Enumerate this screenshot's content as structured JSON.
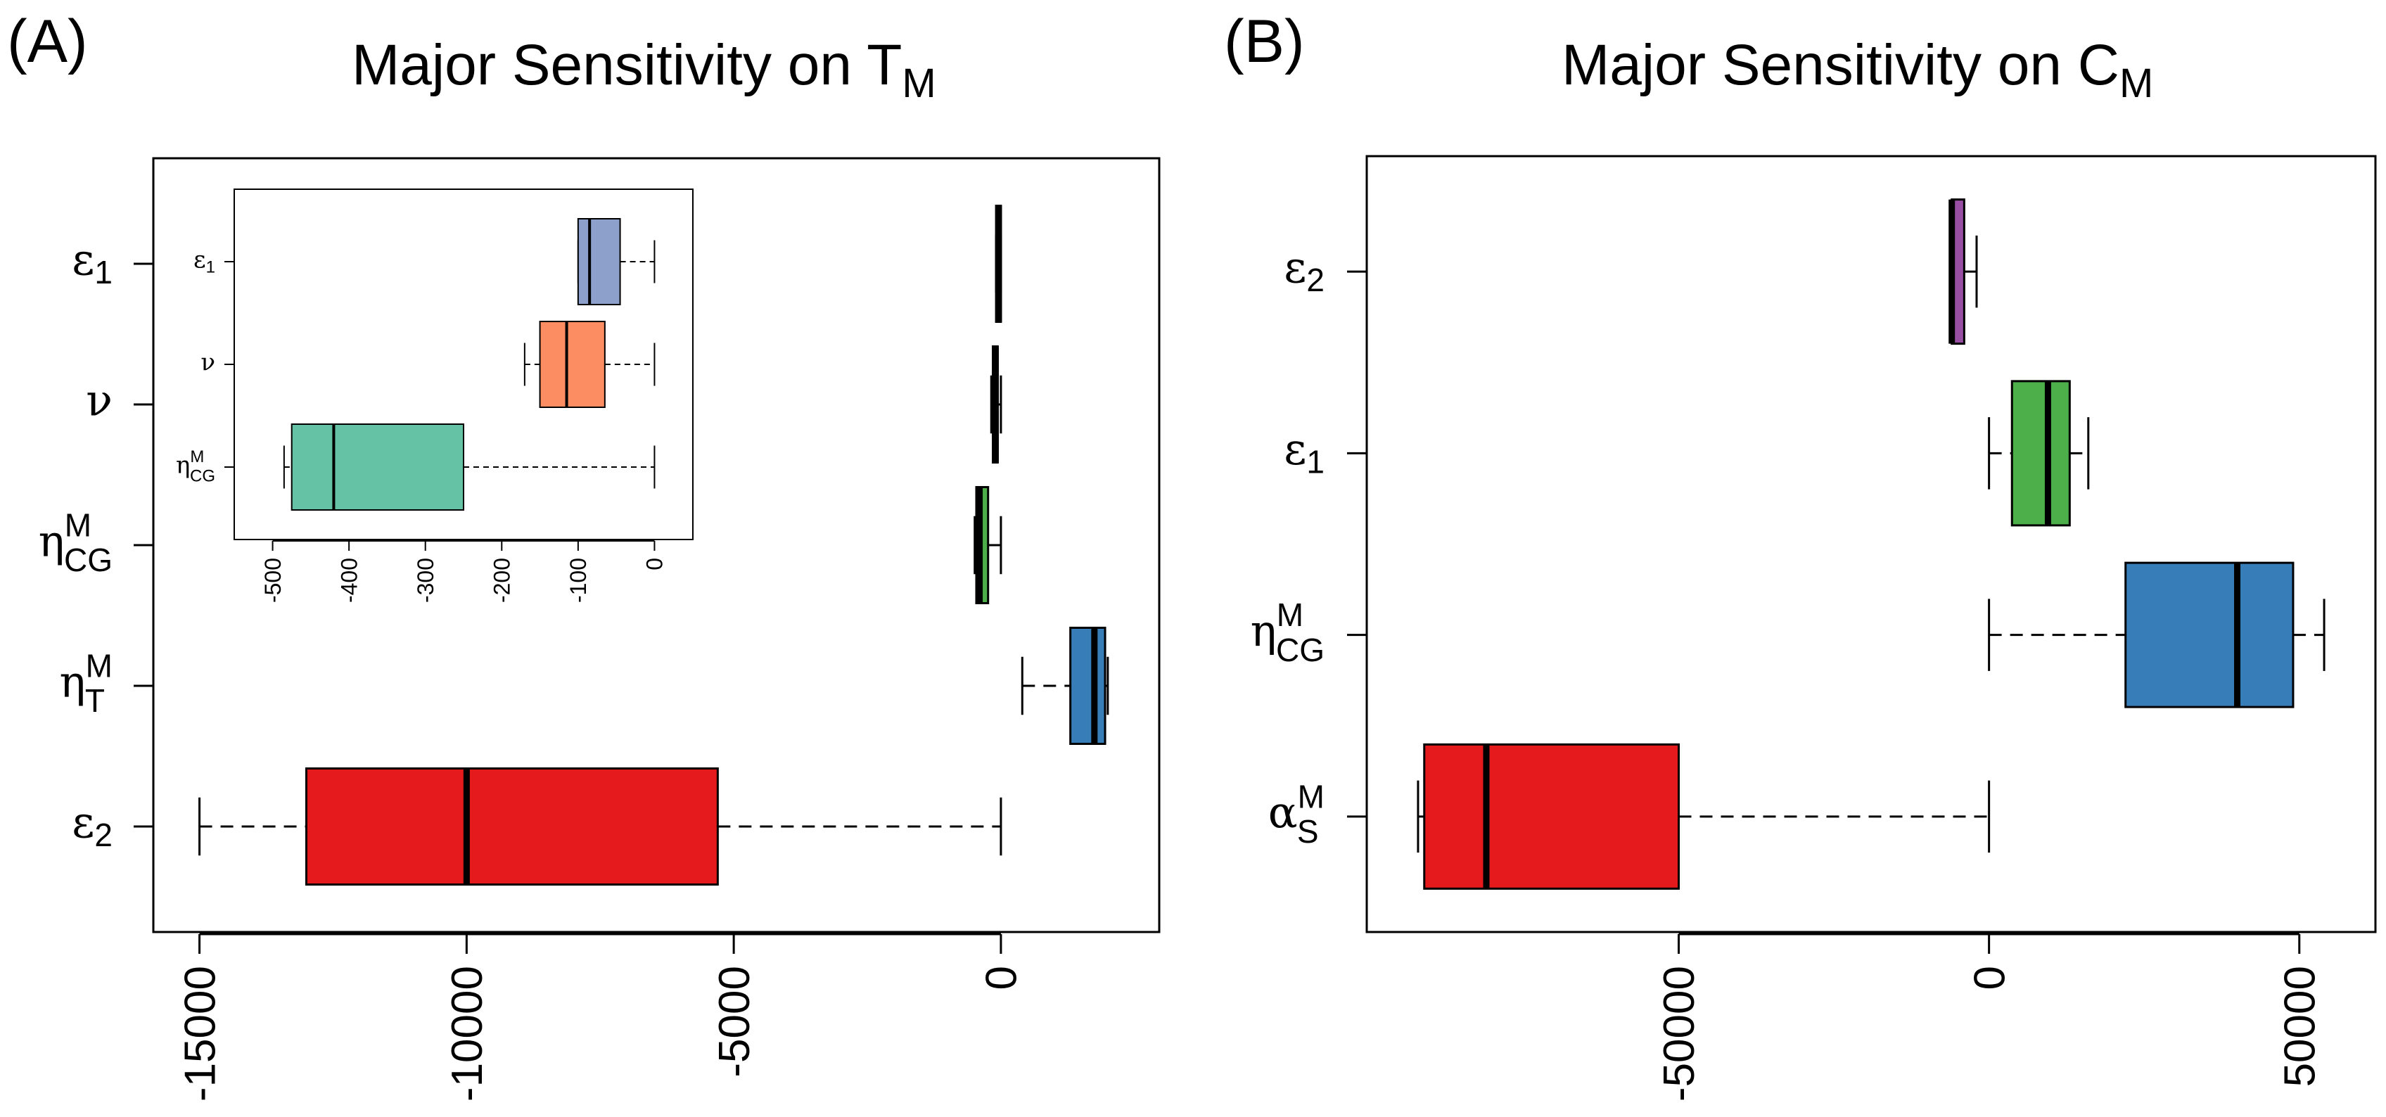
{
  "panels": [
    {
      "panel_label": "(A)",
      "title_main": "Major Sensitivity on T",
      "title_sub": "M"
    },
    {
      "panel_label": "(B)",
      "title_main": "Major Sensitivity on C",
      "title_sub": "M"
    }
  ],
  "chart_data": [
    {
      "type": "boxplot",
      "orientation": "horizontal",
      "title": "Major Sensitivity on T_M",
      "xlim": [
        -15600,
        2700
      ],
      "x_ticks": [
        "-15000",
        "-10000",
        "-5000",
        "0"
      ],
      "x_tick_values": [
        -15000,
        -10000,
        -5000,
        0
      ],
      "categories": [
        {
          "base": "ε",
          "sub": "1",
          "sup": ""
        },
        {
          "base": "ν",
          "sub": "",
          "sup": ""
        },
        {
          "base": "η",
          "sub": "CG",
          "sup": "M"
        },
        {
          "base": "η",
          "sub": "T",
          "sup": "M"
        },
        {
          "base": "ε",
          "sub": "2",
          "sup": ""
        }
      ],
      "boxes": [
        {
          "label": "ε1",
          "min": -90,
          "q1": -90,
          "median": -40,
          "q3": 0,
          "max": 0,
          "color": "#8DA0CB"
        },
        {
          "label": "ν",
          "min": -180,
          "q1": -150,
          "median": -100,
          "q3": -60,
          "max": 0,
          "color": "#FC8D62"
        },
        {
          "label": "ηCG^M",
          "min": -490,
          "q1": -460,
          "median": -400,
          "q3": -240,
          "max": 0,
          "color": "#4DAF4A"
        },
        {
          "label": "ηT^M",
          "min": 400,
          "q1": 1300,
          "median": 1750,
          "q3": 1950,
          "max": 2000,
          "color": "#377EB8"
        },
        {
          "label": "ε2",
          "min": -15000,
          "q1": -13000,
          "median": -10000,
          "q3": -5300,
          "max": 0,
          "color": "#E41A1C"
        }
      ],
      "inset": {
        "xlim": [
          -530,
          30
        ],
        "x_ticks": [
          "-500",
          "-400",
          "-300",
          "-200",
          "-100",
          "0"
        ],
        "x_tick_values": [
          -500,
          -400,
          -300,
          -200,
          -100,
          0
        ],
        "categories": [
          {
            "base": "ε",
            "sub": "1",
            "sup": ""
          },
          {
            "base": "ν",
            "sub": "",
            "sup": ""
          },
          {
            "base": "η",
            "sub": "CG",
            "sup": "M"
          }
        ],
        "boxes": [
          {
            "label": "ε1",
            "min": -100,
            "q1": -100,
            "median": -85,
            "q3": -45,
            "max": 0,
            "color": "#8DA0CB"
          },
          {
            "label": "ν",
            "min": -170,
            "q1": -150,
            "median": -115,
            "q3": -65,
            "max": 0,
            "color": "#FC8D62"
          },
          {
            "label": "ηCG^M",
            "min": -485,
            "q1": -475,
            "median": -420,
            "q3": -250,
            "max": 0,
            "color": "#66C2A5"
          }
        ]
      }
    },
    {
      "type": "boxplot",
      "orientation": "horizontal",
      "title": "Major Sensitivity on C_M",
      "xlim": [
        -98000,
        60000
      ],
      "x_ticks": [
        "-50000",
        "0",
        "50000"
      ],
      "x_tick_values": [
        -50000,
        0,
        50000
      ],
      "categories": [
        {
          "base": "ε",
          "sub": "2",
          "sup": ""
        },
        {
          "base": "ε",
          "sub": "1",
          "sup": ""
        },
        {
          "base": "η",
          "sub": "CG",
          "sup": "M"
        },
        {
          "base": "α",
          "sub": "S",
          "sup": "M"
        }
      ],
      "boxes": [
        {
          "label": "ε2",
          "min": -6000,
          "q1": -6000,
          "median": -6000,
          "q3": -4000,
          "max": -2000,
          "color": "#984EA3"
        },
        {
          "label": "ε1",
          "min": 0,
          "q1": 3700,
          "median": 9500,
          "q3": 13000,
          "max": 16000,
          "color": "#4DAF4A"
        },
        {
          "label": "ηCG^M",
          "min": 0,
          "q1": 22000,
          "median": 40000,
          "q3": 49000,
          "max": 54000,
          "color": "#377EB8"
        },
        {
          "label": "αS^M",
          "min": -92000,
          "q1": -91000,
          "median": -81000,
          "q3": -50000,
          "max": 0,
          "color": "#E41A1C"
        }
      ]
    }
  ]
}
